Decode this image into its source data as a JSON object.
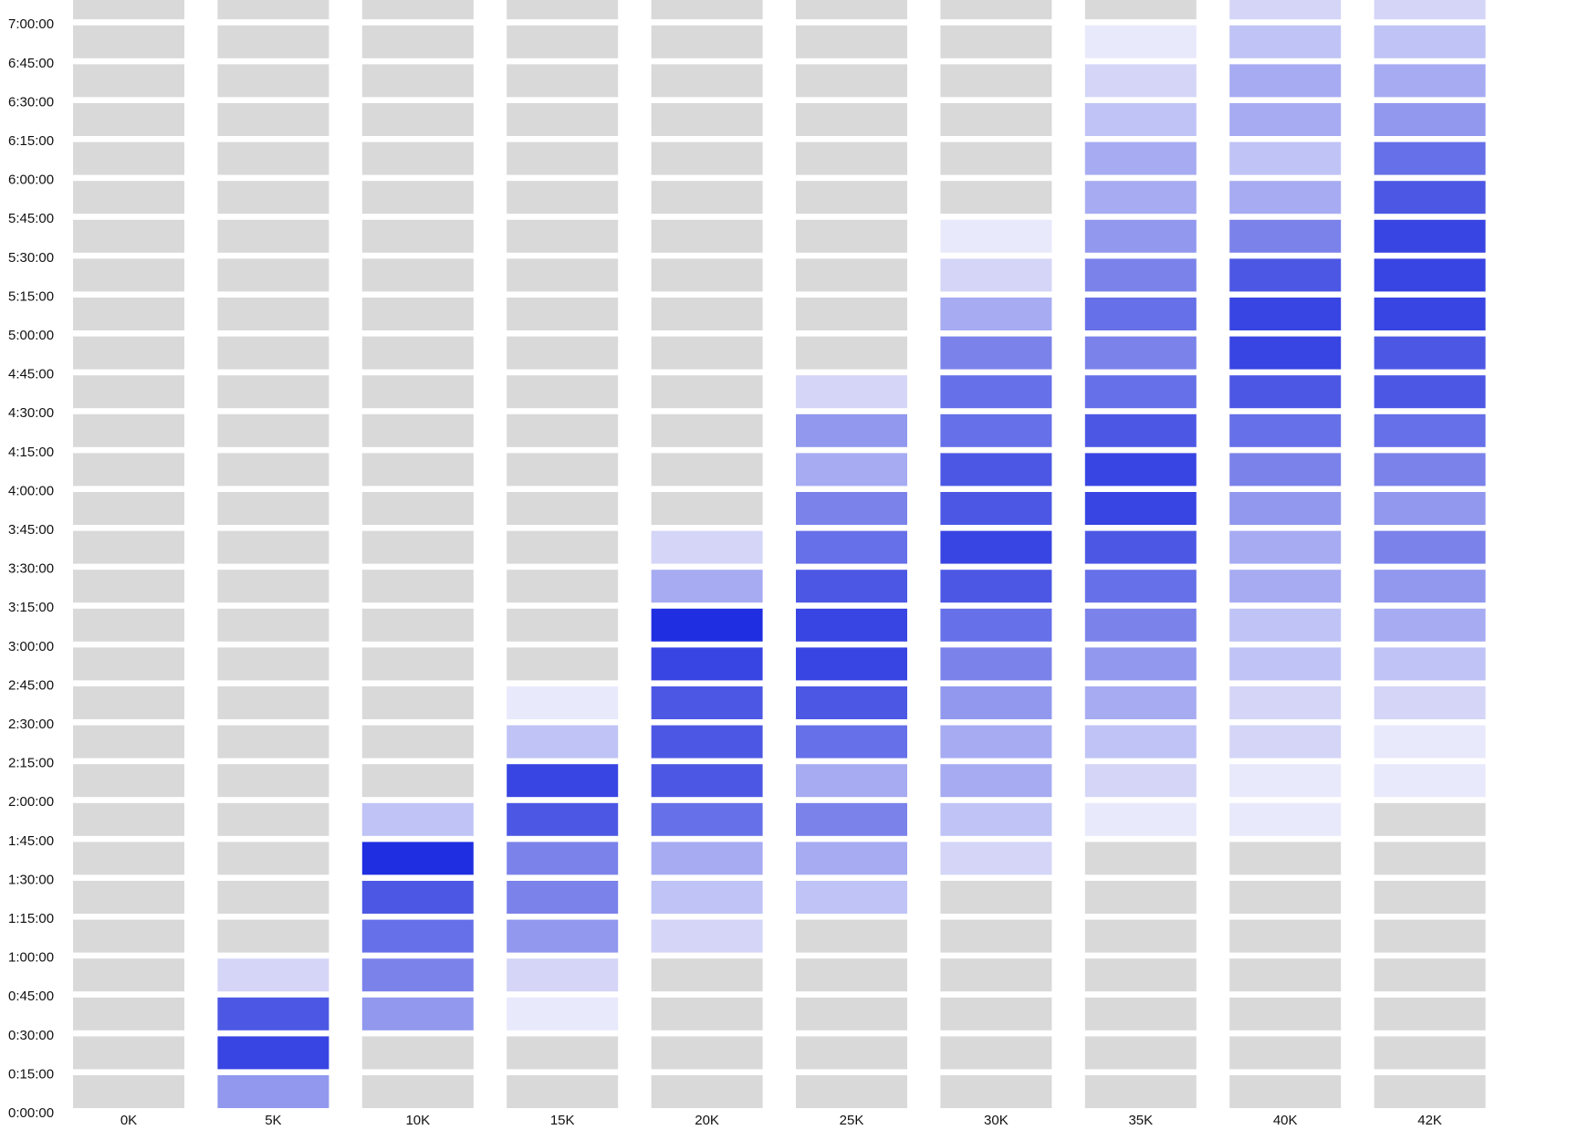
{
  "chart_data": {
    "type": "heatmap",
    "x_categories": [
      "0K",
      "5K",
      "10K",
      "15K",
      "20K",
      "25K",
      "30K",
      "35K",
      "40K",
      "42K"
    ],
    "y_categories": [
      "0:00:00",
      "0:15:00",
      "0:30:00",
      "0:45:00",
      "1:00:00",
      "1:15:00",
      "1:30:00",
      "1:45:00",
      "2:00:00",
      "2:15:00",
      "2:30:00",
      "2:45:00",
      "3:00:00",
      "3:15:00",
      "3:30:00",
      "3:45:00",
      "4:00:00",
      "4:15:00",
      "4:30:00",
      "4:45:00",
      "5:00:00",
      "5:15:00",
      "5:30:00",
      "5:45:00",
      "6:00:00",
      "6:15:00",
      "6:30:00",
      "6:45:00",
      "7:00:00"
    ],
    "values": [
      [
        0,
        0,
        0,
        0,
        0,
        0,
        0,
        0,
        0,
        0,
        0,
        0,
        0,
        0,
        0,
        0,
        0,
        0,
        0,
        0,
        0,
        0,
        0,
        0,
        0,
        0,
        0,
        0,
        0
      ],
      [
        5,
        9,
        8,
        2,
        0,
        0,
        0,
        0,
        0,
        0,
        0,
        0,
        0,
        0,
        0,
        0,
        0,
        0,
        0,
        0,
        0,
        0,
        0,
        0,
        0,
        0,
        0,
        0,
        0
      ],
      [
        0,
        0,
        5,
        6,
        7,
        8,
        10,
        3,
        0,
        0,
        0,
        0,
        0,
        0,
        0,
        0,
        0,
        0,
        0,
        0,
        0,
        0,
        0,
        0,
        0,
        0,
        0,
        0,
        0
      ],
      [
        0,
        0,
        1,
        2,
        5,
        6,
        6,
        8,
        9,
        3,
        1,
        0,
        0,
        0,
        0,
        0,
        0,
        0,
        0,
        0,
        0,
        0,
        0,
        0,
        0,
        0,
        0,
        0,
        0
      ],
      [
        0,
        0,
        0,
        0,
        2,
        3,
        4,
        7,
        8,
        8,
        8,
        9,
        10,
        4,
        2,
        0,
        0,
        0,
        0,
        0,
        0,
        0,
        0,
        0,
        0,
        0,
        0,
        0,
        0
      ],
      [
        0,
        0,
        0,
        0,
        0,
        3,
        4,
        6,
        4,
        7,
        8,
        9,
        9,
        8,
        7,
        6,
        4,
        5,
        2,
        0,
        0,
        0,
        0,
        0,
        0,
        0,
        0,
        0,
        0
      ],
      [
        0,
        0,
        0,
        0,
        0,
        0,
        2,
        3,
        4,
        4,
        5,
        6,
        7,
        8,
        9,
        8,
        8,
        7,
        7,
        6,
        4,
        2,
        1,
        0,
        0,
        0,
        0,
        0,
        0
      ],
      [
        0,
        0,
        0,
        0,
        0,
        0,
        0,
        1,
        2,
        3,
        4,
        5,
        6,
        7,
        8,
        9,
        9,
        8,
        7,
        6,
        7,
        6,
        5,
        4,
        4,
        3,
        2,
        1,
        0
      ],
      [
        0,
        0,
        0,
        0,
        0,
        0,
        0,
        1,
        1,
        2,
        2,
        3,
        3,
        4,
        4,
        5,
        6,
        7,
        8,
        9,
        9,
        8,
        6,
        4,
        3,
        4,
        4,
        3,
        2
      ],
      [
        0,
        0,
        0,
        0,
        0,
        0,
        0,
        0,
        1,
        1,
        2,
        3,
        4,
        5,
        6,
        5,
        6,
        7,
        8,
        8,
        9,
        9,
        9,
        8,
        7,
        5,
        4,
        3,
        2
      ]
    ],
    "empty_color": "#d9d9d9",
    "color_scale": [
      "#d9d9d9",
      "#e8e9fb",
      "#d4d5f7",
      "#bfc3f5",
      "#a6abf2",
      "#9198ee",
      "#7b82ea",
      "#6670e8",
      "#4c58e4",
      "#3845e2",
      "#1f2ee0"
    ]
  }
}
